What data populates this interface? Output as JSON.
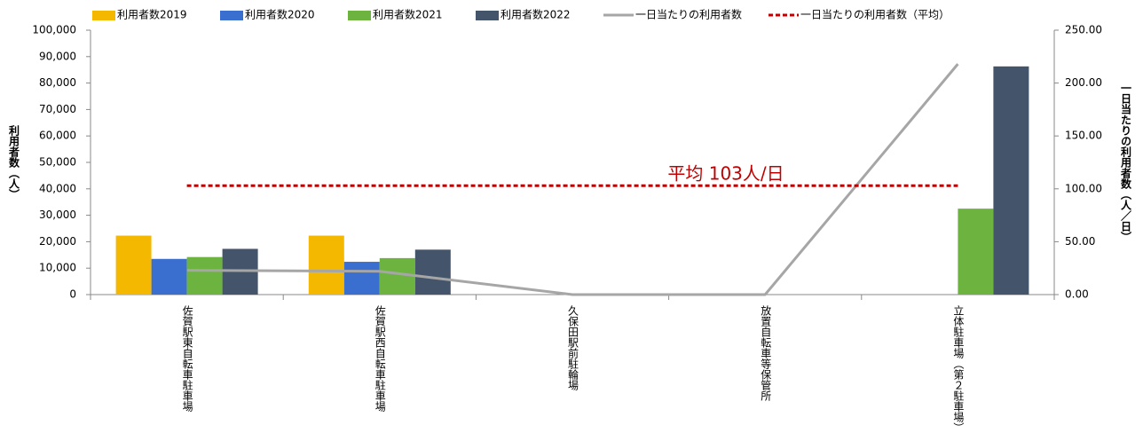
{
  "chart_data": {
    "type": "bar",
    "categories": [
      "佐賀駅東自転車駐車場",
      "佐賀駅西自転車駐車場",
      "久保田駅前駐輪場",
      "放置自転車等保管所",
      "立体駐車場（第２駐車場）"
    ],
    "series": [
      {
        "name": "利用者数2019",
        "color": "#f5b800",
        "values": [
          22300,
          22300,
          null,
          null,
          null
        ]
      },
      {
        "name": "利用者数2020",
        "color": "#3a6fd0",
        "values": [
          13500,
          12400,
          null,
          null,
          null
        ]
      },
      {
        "name": "利用者数2021",
        "color": "#6db33f",
        "values": [
          14200,
          13800,
          null,
          null,
          32500
        ]
      },
      {
        "name": "利用者数2022",
        "color": "#44546a",
        "values": [
          17300,
          17000,
          null,
          null,
          86300
        ]
      },
      {
        "name": "一日当たりの利用者数",
        "type": "line",
        "axis": "y2",
        "color": "#a6a6a6",
        "values": [
          23,
          22,
          0,
          0,
          218
        ]
      },
      {
        "name": "一日当たりの利用者数（平均）",
        "type": "line",
        "axis": "y2",
        "color": "#c00000",
        "dashed": true,
        "values": [
          103,
          103,
          103,
          103,
          103
        ]
      }
    ],
    "annotation": "平均 103人/日",
    "ylabel": "利用者数（人）",
    "y2label": "一日当たりの利用者数（人／日）",
    "ylim": [
      0,
      100000
    ],
    "yticks": [
      0,
      {
        "value": 10000,
        "label": "10,000"
      },
      {
        "value": 20000,
        "label": "20,000"
      },
      {
        "value": 30000,
        "label": "30,000"
      },
      {
        "value": 40000,
        "label": "40,000"
      },
      {
        "value": 50000,
        "label": "50,000"
      },
      {
        "value": 60000,
        "label": "60,000"
      },
      {
        "value": 70000,
        "label": "70,000"
      },
      {
        "value": 80000,
        "label": "80,000"
      },
      {
        "value": 90000,
        "label": "90,000"
      },
      {
        "value": 100000,
        "label": "100,000"
      }
    ],
    "y2lim": [
      0,
      250
    ],
    "y2ticks": [
      {
        "value": 0,
        "label": "0.00"
      },
      {
        "value": 50,
        "label": "50.00"
      },
      {
        "value": 100,
        "label": "100.00"
      },
      {
        "value": 150,
        "label": "150.00"
      },
      {
        "value": 200,
        "label": "200.00"
      },
      {
        "value": 250,
        "label": "250.00"
      }
    ]
  }
}
